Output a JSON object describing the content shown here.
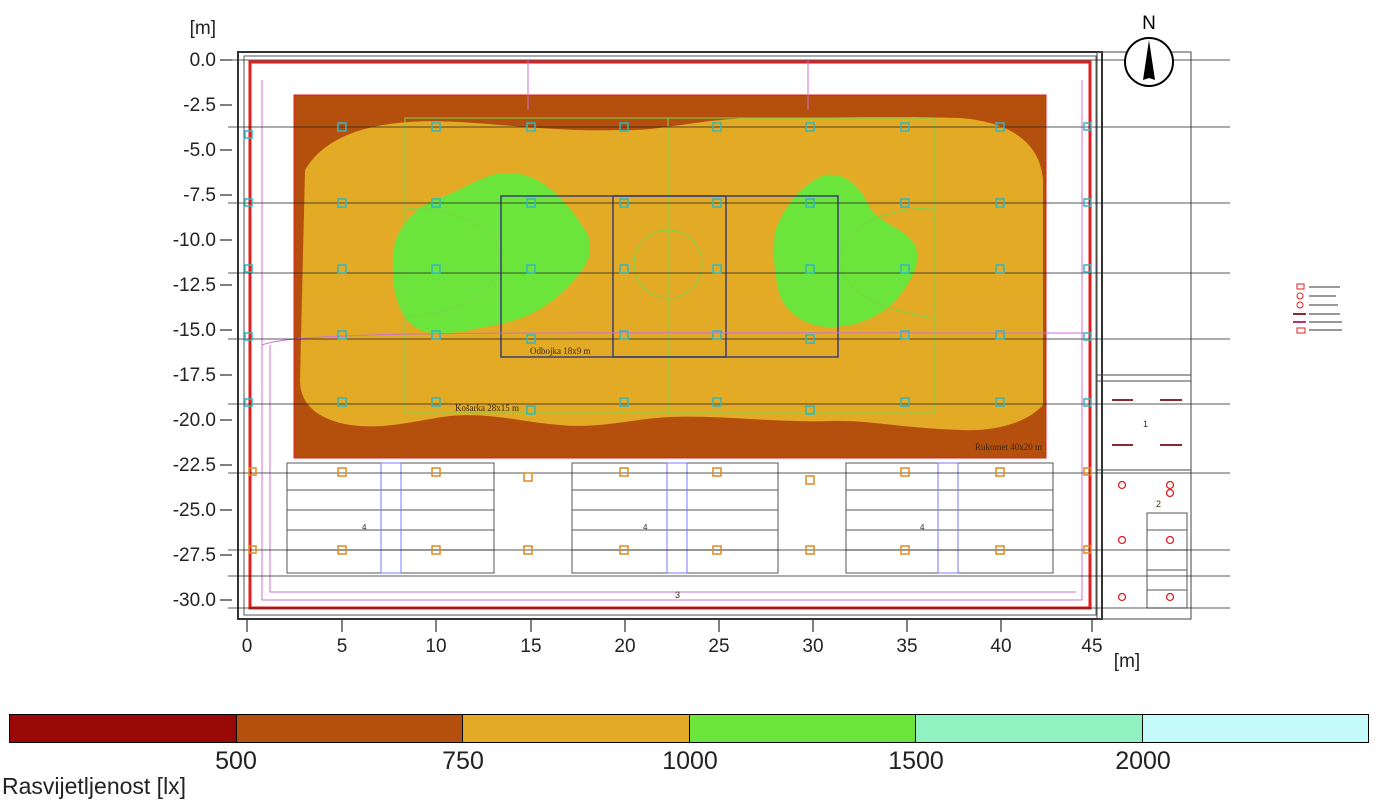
{
  "axes": {
    "y_unit": "[m]",
    "x_unit": "[m]",
    "y_ticks": [
      "0.0",
      "-2.5",
      "-5.0",
      "-7.5",
      "-10.0",
      "-12.5",
      "-15.0",
      "-17.5",
      "-20.0",
      "-22.5",
      "-25.0",
      "-27.5",
      "-30.0"
    ],
    "x_ticks": [
      "0",
      "5",
      "10",
      "15",
      "20",
      "25",
      "30",
      "35",
      "40",
      "45"
    ]
  },
  "compass": {
    "label": "N"
  },
  "plan_labels": {
    "court_small": "Odbojka 18x9 m",
    "court_mid": "Košarka 28x15 m",
    "court_big": "Rukomet 40x20 m",
    "room_1": "1",
    "room_2": "2",
    "room_3": "3",
    "stand_1": "4",
    "stand_2": "4",
    "stand_3": "4"
  },
  "legend": {
    "title": "Rasvijetljenost [lx]",
    "bands": [
      {
        "color": "#990a06"
      },
      {
        "color": "#b54f0d"
      },
      {
        "color": "#e3aa26"
      },
      {
        "color": "#6be53b"
      },
      {
        "color": "#91f2c1"
      },
      {
        "color": "#c5fafb"
      }
    ],
    "ticks": [
      "500",
      "750",
      "1000",
      "1500",
      "2000"
    ]
  },
  "contour_colors": {
    "band_500_750": "#b54f0d",
    "band_750_1000": "#e3aa26",
    "band_1000_1500": "#6be53b"
  }
}
